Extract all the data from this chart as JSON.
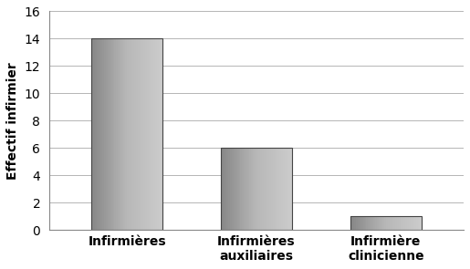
{
  "categories": [
    "Infirmières",
    "Infirmières\nauxiliaires",
    "Infirmière\nclinicienne"
  ],
  "values": [
    14,
    6,
    1
  ],
  "bar_color_dark": "#888888",
  "bar_color_mid": "#a8a8a8",
  "bar_color_light": "#c8c8c8",
  "bar_color_edge": "#444444",
  "ylabel": "Effectif infirmier",
  "ylim": [
    0,
    16
  ],
  "yticks": [
    0,
    2,
    4,
    6,
    8,
    10,
    12,
    14,
    16
  ],
  "background_color": "#ffffff",
  "grid_color": "#aaaaaa",
  "ylabel_fontsize": 10,
  "tick_fontsize": 10,
  "xlabel_fontsize": 10
}
